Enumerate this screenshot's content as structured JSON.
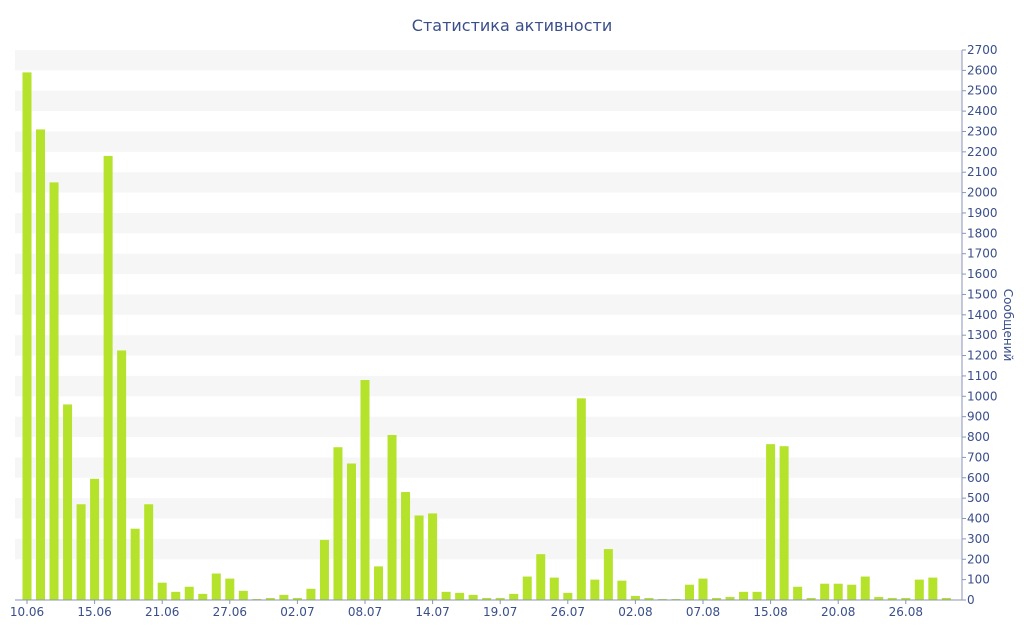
{
  "chart_data": {
    "type": "bar",
    "title": "Статистика активности",
    "xlabel": "",
    "ylabel": "Сообщений",
    "ylim": [
      0,
      2700
    ],
    "y_ticks": [
      0,
      100,
      200,
      300,
      400,
      500,
      600,
      700,
      800,
      900,
      1000,
      1100,
      1200,
      1300,
      1400,
      1500,
      1600,
      1700,
      1800,
      1900,
      2000,
      2100,
      2200,
      2300,
      2400,
      2500,
      2600,
      2700
    ],
    "y_axis_side": "right",
    "grid": "alternating horizontal bands",
    "bar_color": "#b5e22a",
    "band_color": "#f6f6f6",
    "text_color": "#3a4f8a",
    "x_tick_labels": [
      "10.06",
      "15.06",
      "21.06",
      "27.06",
      "02.07",
      "08.07",
      "14.07",
      "19.07",
      "26.07",
      "02.08",
      "07.08",
      "15.08",
      "20.08",
      "26.08"
    ],
    "x_tick_bar_index": [
      0,
      5,
      10,
      15,
      20,
      25,
      30,
      35,
      40,
      45,
      50,
      55,
      60,
      65
    ],
    "values": [
      2590,
      2310,
      2050,
      960,
      470,
      595,
      2180,
      1225,
      350,
      470,
      85,
      40,
      65,
      30,
      130,
      105,
      45,
      5,
      10,
      25,
      10,
      55,
      295,
      750,
      670,
      1080,
      165,
      810,
      530,
      415,
      425,
      40,
      35,
      25,
      10,
      10,
      30,
      115,
      225,
      110,
      35,
      990,
      100,
      250,
      95,
      20,
      10,
      5,
      5,
      75,
      105,
      10,
      15,
      40,
      40,
      765,
      755,
      65,
      10,
      80,
      80,
      75,
      115,
      15,
      10,
      10,
      100,
      110,
      10
    ]
  }
}
